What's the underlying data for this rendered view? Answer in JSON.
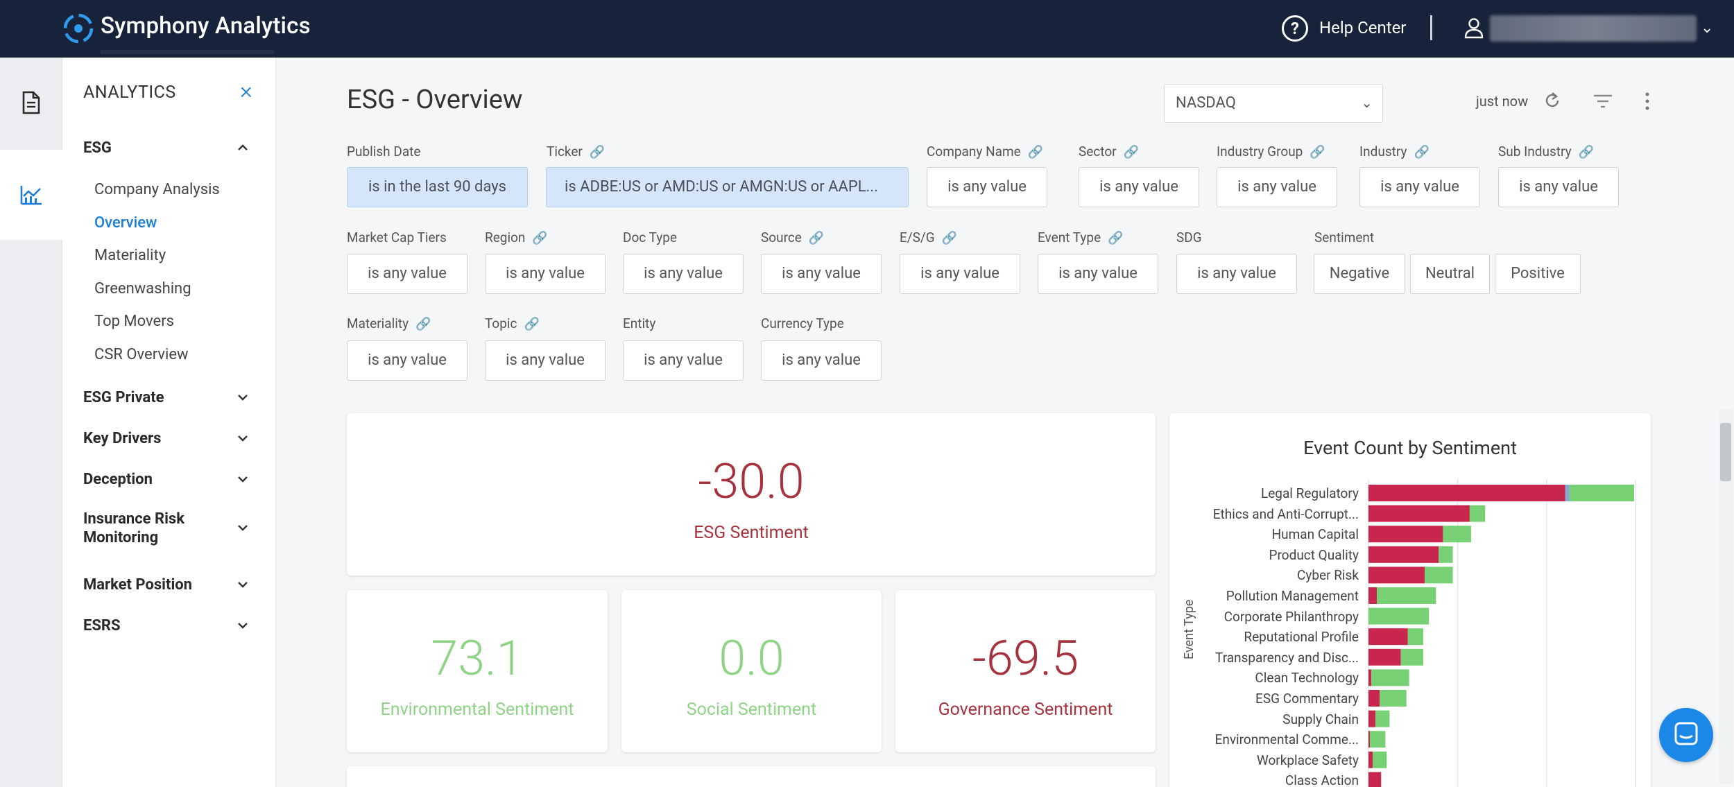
{
  "app": {
    "name": "Symphony Analytics"
  },
  "header": {
    "help_label": "Help Center",
    "user_email": "[email redacted]"
  },
  "sidebar": {
    "title": "ANALYTICS",
    "sections": [
      {
        "label": "ESG",
        "expanded": true,
        "items": [
          "Company Analysis",
          "Overview",
          "Materiality",
          "Greenwashing",
          "Top Movers",
          "CSR Overview"
        ],
        "active": "Overview"
      },
      {
        "label": "ESG Private",
        "expanded": false
      },
      {
        "label": "Key Drivers",
        "expanded": false
      },
      {
        "label": "Deception",
        "expanded": false
      },
      {
        "label": "Insurance Risk Monitoring",
        "expanded": false
      },
      {
        "label": "Market Position",
        "expanded": false
      },
      {
        "label": "ESRS",
        "expanded": false
      }
    ]
  },
  "page": {
    "title": "ESG - Overview",
    "exchange": "NASDAQ",
    "updated": "just now"
  },
  "filters": {
    "publish_date": {
      "label": "Publish Date",
      "value": "is in the last 90 days"
    },
    "ticker": {
      "label": "Ticker",
      "value": "is ADBE:US or AMD:US or AMGN:US or AAPL..."
    },
    "company_name": {
      "label": "Company Name",
      "value": "is any value"
    },
    "sector": {
      "label": "Sector",
      "value": "is any value"
    },
    "industry_group": {
      "label": "Industry Group",
      "value": "is any value"
    },
    "industry": {
      "label": "Industry",
      "value": "is any value"
    },
    "sub_industry": {
      "label": "Sub Industry",
      "value": "is any value"
    },
    "market_cap_tiers": {
      "label": "Market Cap Tiers",
      "value": "is any value"
    },
    "region": {
      "label": "Region",
      "value": "is any value"
    },
    "doc_type": {
      "label": "Doc Type",
      "value": "is any value"
    },
    "source": {
      "label": "Source",
      "value": "is any value"
    },
    "esg": {
      "label": "E/S/G",
      "value": "is any value"
    },
    "event_type": {
      "label": "Event Type",
      "value": "is any value"
    },
    "sdg": {
      "label": "SDG",
      "value": "is any value"
    },
    "sentiment": {
      "label": "Sentiment",
      "options": [
        "Negative",
        "Neutral",
        "Positive"
      ]
    },
    "materiality": {
      "label": "Materiality",
      "value": "is any value"
    },
    "topic": {
      "label": "Topic",
      "value": "is any value"
    },
    "entity": {
      "label": "Entity",
      "value": "is any value"
    },
    "currency_type": {
      "label": "Currency Type",
      "value": "is any value"
    }
  },
  "kpis": {
    "esg": {
      "value": "-30.0",
      "label": "ESG Sentiment"
    },
    "environmental": {
      "value": "73.1",
      "label": "Environmental Sentiment"
    },
    "social": {
      "value": "0.0",
      "label": "Social Sentiment"
    },
    "governance": {
      "value": "-69.5",
      "label": "Governance Sentiment"
    }
  },
  "colors": {
    "negative": "#c8264c",
    "neutral": "#7fa8d8",
    "positive": "#77d174"
  },
  "chart_data": {
    "type": "bar",
    "orientation": "horizontal",
    "stacked": true,
    "title": "Event Count by Sentiment",
    "ylabel": "Event Type",
    "categories": [
      "Legal Regulatory",
      "Ethics and Anti-Corrupt...",
      "Human Capital",
      "Product Quality",
      "Cyber Risk",
      "Pollution Management",
      "Corporate Philanthropy",
      "Reputational Profile",
      "Transparency and Disc...",
      "Clean Technology",
      "ESG Commentary",
      "Supply Chain",
      "Environmental Comme...",
      "Workplace Safety",
      "Class Action"
    ],
    "series": [
      {
        "name": "Negative",
        "values": [
          140,
          72,
          53,
          50,
          40,
          6,
          0,
          28,
          23,
          2,
          8,
          5,
          1,
          3,
          9
        ]
      },
      {
        "name": "Neutral",
        "values": [
          3,
          0,
          0,
          0,
          0,
          0,
          0,
          0,
          0,
          0,
          0,
          0,
          0,
          0,
          0
        ]
      },
      {
        "name": "Positive",
        "values": [
          46,
          11,
          20,
          10,
          20,
          42,
          43,
          11,
          16,
          27,
          19,
          10,
          11,
          10,
          0
        ]
      }
    ],
    "grid": true
  }
}
